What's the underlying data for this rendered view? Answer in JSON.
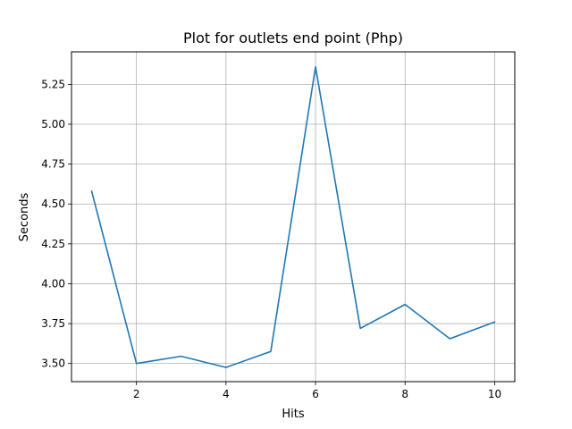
{
  "chart_data": {
    "type": "line",
    "title": "Plot for outlets end point (Php)",
    "xlabel": "Hits",
    "ylabel": "Seconds",
    "x": [
      1,
      2,
      3,
      4,
      5,
      6,
      7,
      8,
      9,
      10
    ],
    "series": [
      {
        "values": [
          4.58,
          3.5,
          3.545,
          3.475,
          3.575,
          5.36,
          3.72,
          3.87,
          3.655,
          3.76
        ],
        "color": "#1f77b4"
      }
    ],
    "xlim": [
      0.55,
      10.45
    ],
    "ylim": [
      3.386,
      5.454
    ],
    "xticks": [
      2,
      4,
      6,
      8,
      10
    ],
    "xtick_labels": [
      "2",
      "4",
      "6",
      "8",
      "10"
    ],
    "yticks": [
      3.5,
      3.75,
      4.0,
      4.25,
      4.5,
      4.75,
      5.0,
      5.25
    ],
    "ytick_labels": [
      "3.50",
      "3.75",
      "4.00",
      "4.25",
      "4.50",
      "4.75",
      "5.00",
      "5.25"
    ],
    "grid": true,
    "legend": "none"
  }
}
